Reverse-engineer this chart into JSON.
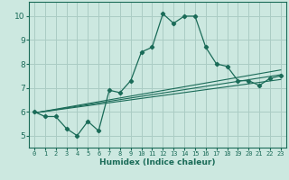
{
  "xlabel": "Humidex (Indice chaleur)",
  "background_color": "#cce8e0",
  "grid_color": "#aaccC4",
  "line_color": "#1a6b58",
  "xlim": [
    -0.5,
    23.5
  ],
  "ylim": [
    4.5,
    10.6
  ],
  "xticks": [
    0,
    1,
    2,
    3,
    4,
    5,
    6,
    7,
    8,
    9,
    10,
    11,
    12,
    13,
    14,
    15,
    16,
    17,
    18,
    19,
    20,
    21,
    22,
    23
  ],
  "yticks": [
    5,
    6,
    7,
    8,
    9,
    10
  ],
  "line_main_x": [
    0,
    1,
    2,
    3,
    4,
    5,
    6,
    7,
    8,
    9,
    10,
    11,
    12,
    13,
    14,
    15,
    16,
    17,
    18,
    19,
    20,
    21,
    22,
    23
  ],
  "line_main_y": [
    6.0,
    5.8,
    5.8,
    5.3,
    5.0,
    5.6,
    5.2,
    6.9,
    6.8,
    7.3,
    8.5,
    8.7,
    10.1,
    9.7,
    10.0,
    10.0,
    8.7,
    8.0,
    7.9,
    7.3,
    7.3,
    7.1,
    7.4,
    7.5
  ],
  "trend_lines": [
    {
      "x": [
        0,
        23
      ],
      "y": [
        5.95,
        7.75
      ]
    },
    {
      "x": [
        0,
        23
      ],
      "y": [
        5.95,
        7.35
      ]
    },
    {
      "x": [
        0,
        23
      ],
      "y": [
        5.95,
        7.55
      ]
    }
  ]
}
